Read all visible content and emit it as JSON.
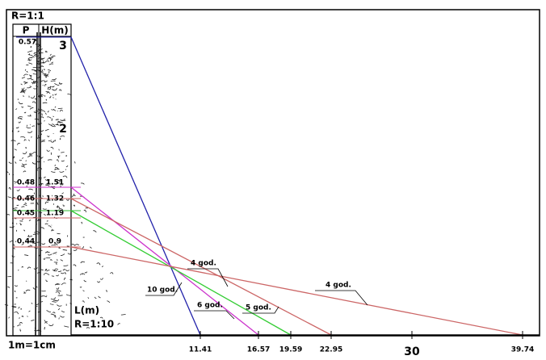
{
  "scale_top": "R=1:1",
  "columns": [
    "P",
    "H(m)"
  ],
  "height_marks": [
    "3",
    "2"
  ],
  "top_row": {
    "p": "0.57"
  },
  "rows": [
    {
      "p": "0.48",
      "h": "1.51"
    },
    {
      "p": "0.46",
      "h": "1.32"
    },
    {
      "p": "0.45",
      "h": "1.19"
    },
    {
      "p": "0.44",
      "h": "0.9"
    }
  ],
  "axis": {
    "label": "L(m)",
    "scale": "R=1:10",
    "unit_note": "1m=1cm",
    "ticks": [
      "11.41",
      "16.57",
      "19.59",
      "22.95",
      "30",
      "39.74"
    ]
  },
  "age_labels": [
    "4 god.",
    "10 god.",
    "6 god.",
    "5 god.",
    "4 god."
  ]
}
